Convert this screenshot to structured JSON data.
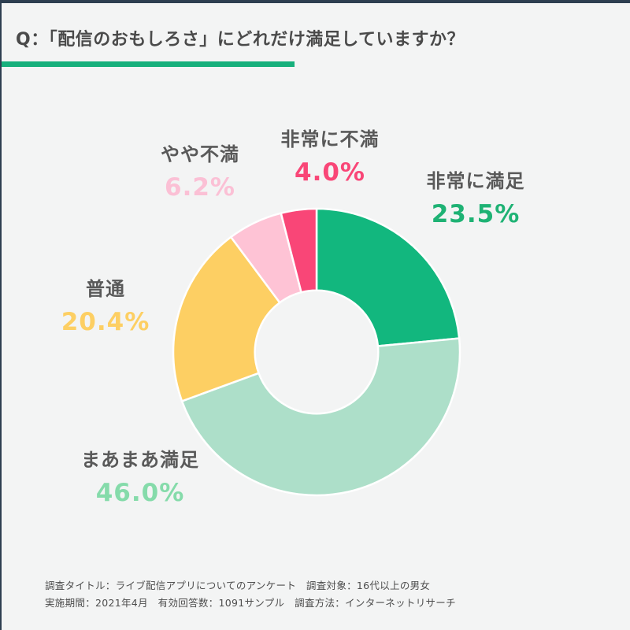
{
  "page": {
    "background": "#f3f4f4",
    "edge_border_color": "#2d3e50"
  },
  "header": {
    "question_title": "Q：「配信のおもしろさ」にどれだけ満足していますか？",
    "title_color": "#4a4a4a",
    "underline_color": "#17b07c"
  },
  "chart_data": {
    "type": "pie",
    "subtype": "donut",
    "title": "Q：「配信のおもしろさ」にどれだけ満足していますか？",
    "categories": [
      "非常に満足",
      "まあまあ満足",
      "普通",
      "やや不満",
      "非常に不満"
    ],
    "values": [
      23.5,
      46.0,
      20.4,
      6.2,
      4.0
    ],
    "unit": "%",
    "colors": [
      "#12b77e",
      "#addfc9",
      "#fdcf63",
      "#fec3d5",
      "#f94677"
    ],
    "start_angle_deg": 0,
    "direction": "clockwise",
    "donut_hole_ratio": 0.43,
    "divider_color": "#ffffff",
    "label_name_color": "#595959",
    "labels": [
      {
        "name": "非常に満足",
        "pct": "23.5%",
        "color": "#1eb274"
      },
      {
        "name": "まあまあ満足",
        "pct": "46.0%",
        "color": "#85dbaa"
      },
      {
        "name": "普通",
        "pct": "20.4%",
        "color": "#fdcf63"
      },
      {
        "name": "やや不満",
        "pct": "6.2%",
        "color": "#fbc0d5"
      },
      {
        "name": "非常に不満",
        "pct": "4.0%",
        "color": "#f94677"
      }
    ]
  },
  "footer": {
    "line1": "調査タイトル：ライブ配信アプリについてのアンケート　調査対象：16代以上の男女",
    "line2": "実施期間：2021年4月　有効回答数：1091サンプル　調査方法：インターネットリサーチ",
    "color": "#4d4d4d"
  }
}
